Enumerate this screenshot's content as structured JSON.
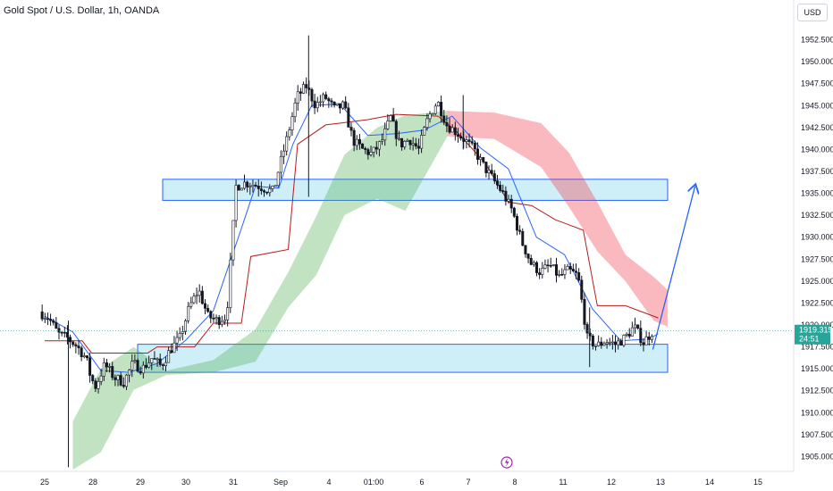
{
  "header": {
    "title": "Gold Spot / U.S. Dollar, 1h, OANDA",
    "currency": "USD"
  },
  "chart_data": {
    "type": "candlestick",
    "symbol": "Gold Spot / U.S. Dollar",
    "interval": "1h",
    "source": "OANDA",
    "ylim": [
      1902.5,
      1955.0
    ],
    "y_ticks": [
      "1952.500",
      "1950.000",
      "1947.500",
      "1945.000",
      "1942.500",
      "1940.000",
      "1937.500",
      "1935.000",
      "1932.500",
      "1930.000",
      "1927.500",
      "1925.000",
      "1922.500",
      "1920.000",
      "1917.500",
      "1915.000",
      "1912.500",
      "1910.000",
      "1907.500",
      "1905.000"
    ],
    "x_ticks": [
      "25",
      "28",
      "29",
      "30",
      "31",
      "Sep",
      "4",
      "01:00",
      "6",
      "7",
      "8",
      "11",
      "12",
      "13",
      "14",
      "15"
    ],
    "current_price": "1919.315",
    "countdown": "24:51",
    "zones": [
      {
        "name": "resistance",
        "from": 1934.2,
        "to": 1936.6
      },
      {
        "name": "support",
        "from": 1914.6,
        "to": 1917.8
      }
    ],
    "close_path": [
      [
        0,
        1921.5
      ],
      [
        0.2,
        1920.8
      ],
      [
        0.4,
        1919.0
      ],
      [
        0.6,
        1918.5
      ],
      [
        0.8,
        1917.6
      ],
      [
        1.0,
        1916.2
      ],
      [
        1.1,
        1914.0
      ],
      [
        1.2,
        1913.0
      ],
      [
        1.4,
        1915.5
      ],
      [
        1.6,
        1914.0
      ],
      [
        1.8,
        1913.5
      ],
      [
        2.0,
        1915.6
      ],
      [
        2.2,
        1915.0
      ],
      [
        2.4,
        1916.2
      ],
      [
        2.6,
        1915.3
      ],
      [
        2.8,
        1917.2
      ],
      [
        3.0,
        1918.5
      ],
      [
        3.2,
        1922.0
      ],
      [
        3.4,
        1924.0
      ],
      [
        3.6,
        1921.0
      ],
      [
        3.8,
        1920.5
      ],
      [
        4.0,
        1921.0
      ],
      [
        4.2,
        1935.8
      ],
      [
        4.4,
        1936.2
      ],
      [
        4.6,
        1936.0
      ],
      [
        4.8,
        1935.6
      ],
      [
        5.0,
        1935.2
      ],
      [
        5.1,
        1937.5
      ],
      [
        5.3,
        1941.5
      ],
      [
        5.5,
        1946.0
      ],
      [
        5.7,
        1947.2
      ],
      [
        5.9,
        1945.0
      ],
      [
        6.1,
        1946.0
      ],
      [
        6.3,
        1944.6
      ],
      [
        6.5,
        1945.0
      ],
      [
        6.7,
        1941.0
      ],
      [
        6.9,
        1940.0
      ],
      [
        7.1,
        1939.5
      ],
      [
        7.3,
        1940.8
      ],
      [
        7.5,
        1943.6
      ],
      [
        7.7,
        1940.5
      ],
      [
        7.9,
        1941.2
      ],
      [
        8.1,
        1940.0
      ],
      [
        8.3,
        1943.6
      ],
      [
        8.5,
        1945.5
      ],
      [
        8.7,
        1942.8
      ],
      [
        8.9,
        1942.0
      ],
      [
        9.1,
        1941.0
      ],
      [
        9.3,
        1939.8
      ],
      [
        9.5,
        1938.0
      ],
      [
        9.7,
        1936.5
      ],
      [
        9.9,
        1935.0
      ],
      [
        10.1,
        1933.0
      ],
      [
        10.3,
        1929.5
      ],
      [
        10.5,
        1927.0
      ],
      [
        10.7,
        1926.0
      ],
      [
        10.9,
        1926.8
      ],
      [
        11.1,
        1925.5
      ],
      [
        11.3,
        1926.2
      ],
      [
        11.5,
        1925.6
      ],
      [
        11.7,
        1918.5
      ],
      [
        11.9,
        1917.6
      ],
      [
        12.1,
        1918.2
      ],
      [
        12.3,
        1917.8
      ],
      [
        12.5,
        1918.5
      ],
      [
        12.7,
        1919.8
      ],
      [
        12.9,
        1918.0
      ],
      [
        13.1,
        1919.315
      ]
    ],
    "tenkan": [
      [
        0,
        1921.0
      ],
      [
        0.6,
        1919.2
      ],
      [
        1.2,
        1914.8
      ],
      [
        1.8,
        1914.6
      ],
      [
        2.4,
        1915.6
      ],
      [
        3.0,
        1918.2
      ],
      [
        3.6,
        1921.6
      ],
      [
        4.2,
        1931.0
      ],
      [
        4.5,
        1935.8
      ],
      [
        5.0,
        1935.6
      ],
      [
        5.3,
        1940.6
      ],
      [
        5.7,
        1945.0
      ],
      [
        6.3,
        1945.2
      ],
      [
        6.9,
        1941.6
      ],
      [
        7.5,
        1941.8
      ],
      [
        8.1,
        1942.2
      ],
      [
        8.7,
        1943.8
      ],
      [
        9.3,
        1940.2
      ],
      [
        9.9,
        1937.8
      ],
      [
        10.5,
        1930.0
      ],
      [
        11.1,
        1928.0
      ],
      [
        11.7,
        1921.8
      ],
      [
        12.3,
        1918.2
      ],
      [
        12.9,
        1918.4
      ],
      [
        13.1,
        1919.0
      ]
    ],
    "kijun": [
      [
        0,
        1918.2
      ],
      [
        0.8,
        1918.2
      ],
      [
        1.0,
        1916.8
      ],
      [
        2.2,
        1916.8
      ],
      [
        2.4,
        1917.5
      ],
      [
        3.2,
        1917.5
      ],
      [
        3.6,
        1920.2
      ],
      [
        4.2,
        1920.2
      ],
      [
        4.4,
        1927.8
      ],
      [
        5.2,
        1928.6
      ],
      [
        5.4,
        1940.6
      ],
      [
        6.0,
        1942.8
      ],
      [
        6.9,
        1943.4
      ],
      [
        7.5,
        1944.0
      ],
      [
        8.4,
        1943.8
      ],
      [
        8.8,
        1942.0
      ],
      [
        9.4,
        1938.5
      ],
      [
        9.9,
        1934.0
      ],
      [
        10.4,
        1933.6
      ],
      [
        10.9,
        1932.0
      ],
      [
        11.5,
        1930.8
      ],
      [
        11.8,
        1922.2
      ],
      [
        12.4,
        1922.2
      ],
      [
        12.8,
        1921.4
      ],
      [
        13.1,
        1920.8
      ]
    ],
    "cloud_green": {
      "upper": [
        [
          0.6,
          1909.0
        ],
        [
          1.2,
          1915.0
        ],
        [
          1.9,
          1917.5
        ],
        [
          2.6,
          1914.8
        ],
        [
          3.6,
          1916.0
        ],
        [
          4.5,
          1919.5
        ],
        [
          5.2,
          1926.0
        ],
        [
          5.8,
          1932.4
        ],
        [
          6.4,
          1939.4
        ],
        [
          7.1,
          1942.5
        ],
        [
          7.7,
          1943.9
        ],
        [
          8.6,
          1944.4
        ]
      ],
      "lower": [
        [
          0.6,
          1903.5
        ],
        [
          1.2,
          1905.5
        ],
        [
          1.9,
          1912.6
        ],
        [
          2.6,
          1914.3
        ],
        [
          3.6,
          1914.6
        ],
        [
          4.5,
          1915.8
        ],
        [
          5.2,
          1922.0
        ],
        [
          5.8,
          1925.7
        ],
        [
          6.4,
          1932.5
        ],
        [
          7.1,
          1934.4
        ],
        [
          7.7,
          1933.0
        ],
        [
          8.6,
          1941.5
        ]
      ]
    },
    "cloud_red": {
      "upper": [
        [
          8.6,
          1944.4
        ],
        [
          9.6,
          1944.2
        ],
        [
          10.6,
          1943.0
        ],
        [
          11.2,
          1939.6
        ],
        [
          11.8,
          1934.0
        ],
        [
          12.4,
          1928.0
        ],
        [
          13.0,
          1925.5
        ],
        [
          13.3,
          1924.0
        ]
      ],
      "lower": [
        [
          8.6,
          1941.5
        ],
        [
          9.6,
          1941.2
        ],
        [
          10.6,
          1938.0
        ],
        [
          11.2,
          1933.4
        ],
        [
          11.8,
          1928.4
        ],
        [
          12.4,
          1925.0
        ],
        [
          13.0,
          1920.5
        ],
        [
          13.3,
          1919.8
        ]
      ]
    },
    "arrow": {
      "from": [
        13.1,
        1917.2
      ],
      "to": [
        14.0,
        1935.8
      ]
    }
  }
}
